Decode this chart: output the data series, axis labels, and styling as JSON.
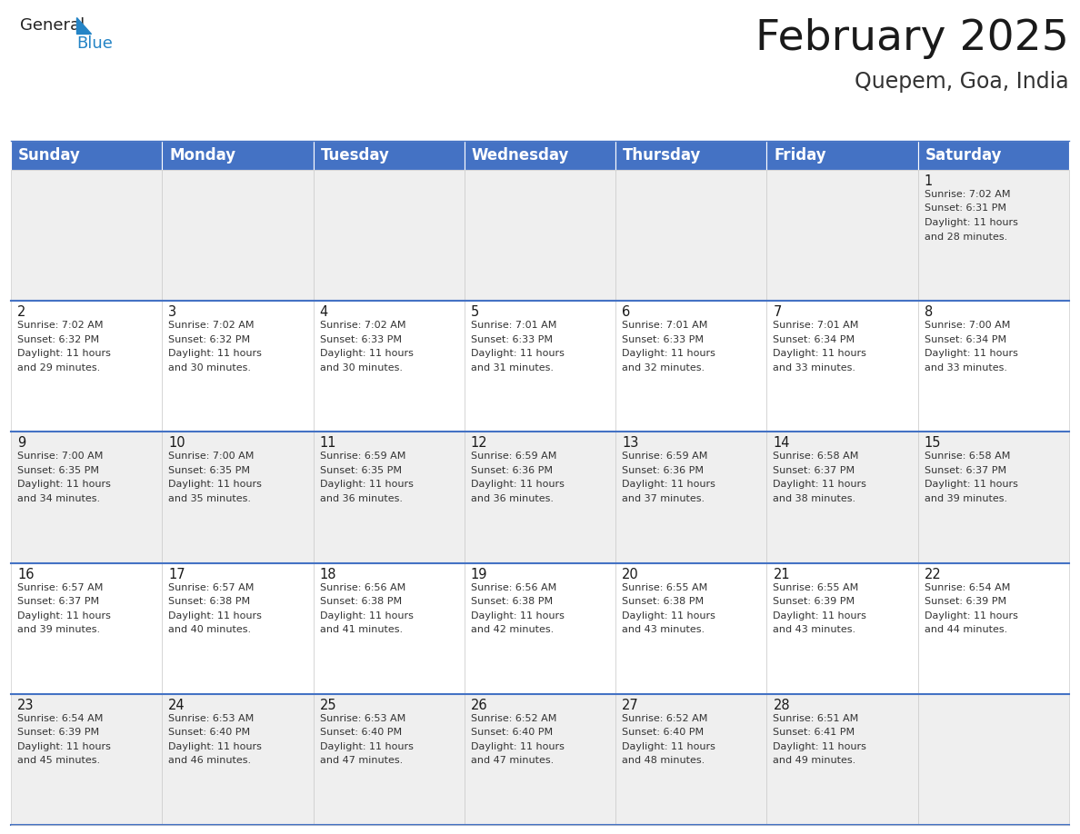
{
  "title": "February 2025",
  "subtitle": "Quepem, Goa, India",
  "header_color": "#4472C4",
  "header_text_color": "#FFFFFF",
  "cell_bg_even": "#EFEFEF",
  "cell_bg_odd": "#FFFFFF",
  "border_color": "#4472C4",
  "grid_color": "#CCCCCC",
  "days_of_week": [
    "Sunday",
    "Monday",
    "Tuesday",
    "Wednesday",
    "Thursday",
    "Friday",
    "Saturday"
  ],
  "title_fontsize": 34,
  "subtitle_fontsize": 17,
  "header_fontsize": 12,
  "day_num_fontsize": 10.5,
  "info_fontsize": 8.0,
  "background_color": "#FFFFFF",
  "calendar": [
    [
      null,
      null,
      null,
      null,
      null,
      null,
      {
        "day": 1,
        "sunrise": "7:02 AM",
        "sunset": "6:31 PM",
        "daylight_hours": 11,
        "daylight_minutes": 28
      }
    ],
    [
      {
        "day": 2,
        "sunrise": "7:02 AM",
        "sunset": "6:32 PM",
        "daylight_hours": 11,
        "daylight_minutes": 29
      },
      {
        "day": 3,
        "sunrise": "7:02 AM",
        "sunset": "6:32 PM",
        "daylight_hours": 11,
        "daylight_minutes": 30
      },
      {
        "day": 4,
        "sunrise": "7:02 AM",
        "sunset": "6:33 PM",
        "daylight_hours": 11,
        "daylight_minutes": 30
      },
      {
        "day": 5,
        "sunrise": "7:01 AM",
        "sunset": "6:33 PM",
        "daylight_hours": 11,
        "daylight_minutes": 31
      },
      {
        "day": 6,
        "sunrise": "7:01 AM",
        "sunset": "6:33 PM",
        "daylight_hours": 11,
        "daylight_minutes": 32
      },
      {
        "day": 7,
        "sunrise": "7:01 AM",
        "sunset": "6:34 PM",
        "daylight_hours": 11,
        "daylight_minutes": 33
      },
      {
        "day": 8,
        "sunrise": "7:00 AM",
        "sunset": "6:34 PM",
        "daylight_hours": 11,
        "daylight_minutes": 33
      }
    ],
    [
      {
        "day": 9,
        "sunrise": "7:00 AM",
        "sunset": "6:35 PM",
        "daylight_hours": 11,
        "daylight_minutes": 34
      },
      {
        "day": 10,
        "sunrise": "7:00 AM",
        "sunset": "6:35 PM",
        "daylight_hours": 11,
        "daylight_minutes": 35
      },
      {
        "day": 11,
        "sunrise": "6:59 AM",
        "sunset": "6:35 PM",
        "daylight_hours": 11,
        "daylight_minutes": 36
      },
      {
        "day": 12,
        "sunrise": "6:59 AM",
        "sunset": "6:36 PM",
        "daylight_hours": 11,
        "daylight_minutes": 36
      },
      {
        "day": 13,
        "sunrise": "6:59 AM",
        "sunset": "6:36 PM",
        "daylight_hours": 11,
        "daylight_minutes": 37
      },
      {
        "day": 14,
        "sunrise": "6:58 AM",
        "sunset": "6:37 PM",
        "daylight_hours": 11,
        "daylight_minutes": 38
      },
      {
        "day": 15,
        "sunrise": "6:58 AM",
        "sunset": "6:37 PM",
        "daylight_hours": 11,
        "daylight_minutes": 39
      }
    ],
    [
      {
        "day": 16,
        "sunrise": "6:57 AM",
        "sunset": "6:37 PM",
        "daylight_hours": 11,
        "daylight_minutes": 39
      },
      {
        "day": 17,
        "sunrise": "6:57 AM",
        "sunset": "6:38 PM",
        "daylight_hours": 11,
        "daylight_minutes": 40
      },
      {
        "day": 18,
        "sunrise": "6:56 AM",
        "sunset": "6:38 PM",
        "daylight_hours": 11,
        "daylight_minutes": 41
      },
      {
        "day": 19,
        "sunrise": "6:56 AM",
        "sunset": "6:38 PM",
        "daylight_hours": 11,
        "daylight_minutes": 42
      },
      {
        "day": 20,
        "sunrise": "6:55 AM",
        "sunset": "6:38 PM",
        "daylight_hours": 11,
        "daylight_minutes": 43
      },
      {
        "day": 21,
        "sunrise": "6:55 AM",
        "sunset": "6:39 PM",
        "daylight_hours": 11,
        "daylight_minutes": 43
      },
      {
        "day": 22,
        "sunrise": "6:54 AM",
        "sunset": "6:39 PM",
        "daylight_hours": 11,
        "daylight_minutes": 44
      }
    ],
    [
      {
        "day": 23,
        "sunrise": "6:54 AM",
        "sunset": "6:39 PM",
        "daylight_hours": 11,
        "daylight_minutes": 45
      },
      {
        "day": 24,
        "sunrise": "6:53 AM",
        "sunset": "6:40 PM",
        "daylight_hours": 11,
        "daylight_minutes": 46
      },
      {
        "day": 25,
        "sunrise": "6:53 AM",
        "sunset": "6:40 PM",
        "daylight_hours": 11,
        "daylight_minutes": 47
      },
      {
        "day": 26,
        "sunrise": "6:52 AM",
        "sunset": "6:40 PM",
        "daylight_hours": 11,
        "daylight_minutes": 47
      },
      {
        "day": 27,
        "sunrise": "6:52 AM",
        "sunset": "6:40 PM",
        "daylight_hours": 11,
        "daylight_minutes": 48
      },
      {
        "day": 28,
        "sunrise": "6:51 AM",
        "sunset": "6:41 PM",
        "daylight_hours": 11,
        "daylight_minutes": 49
      },
      null
    ]
  ]
}
